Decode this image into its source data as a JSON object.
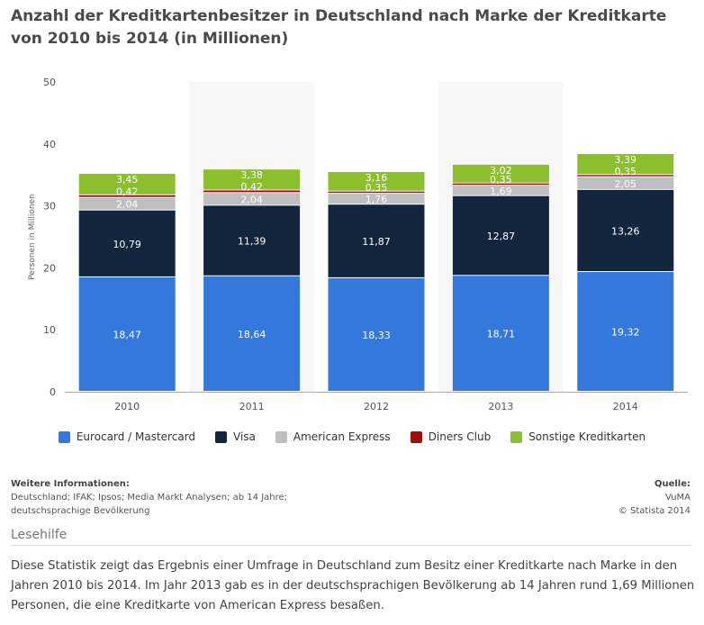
{
  "title": "Anzahl der Kreditkartenbesitzer in Deutschland nach Marke der Kreditkarte von 2010 bis 2014 (in Millionen)",
  "chart_data": {
    "type": "bar",
    "stacked": true,
    "ylabel": "Personen in Millionen",
    "xlabel": "",
    "ylim": [
      0,
      50
    ],
    "yticks": [
      0,
      10,
      20,
      30,
      40,
      50
    ],
    "categories": [
      "2010",
      "2011",
      "2012",
      "2013",
      "2014"
    ],
    "series": [
      {
        "name": "Eurocard / Mastercard",
        "color": "#3478db",
        "values": [
          18.47,
          18.64,
          18.33,
          18.71,
          19.32
        ],
        "labels": [
          "18,47",
          "18,64",
          "18,33",
          "18,71",
          "19,32"
        ]
      },
      {
        "name": "Visa",
        "color": "#13253d",
        "values": [
          10.79,
          11.39,
          11.87,
          12.87,
          13.26
        ],
        "labels": [
          "10,79",
          "11,39",
          "11,87",
          "12,87",
          "13,26"
        ]
      },
      {
        "name": "American Express",
        "color": "#bfbfbf",
        "values": [
          2.04,
          2.04,
          1.76,
          1.69,
          2.05
        ],
        "labels": [
          "2,04",
          "2,04",
          "1,76",
          "1,69",
          "2,05"
        ]
      },
      {
        "name": "Diners Club",
        "color": "#a40b0b",
        "values": [
          0.42,
          0.42,
          0.35,
          0.35,
          0.35
        ],
        "labels": [
          "0,42",
          "0,42",
          "0,35",
          "0,35",
          "0,35"
        ]
      },
      {
        "name": "Sonstige Kreditkarten",
        "color": "#8cbf2e",
        "values": [
          3.45,
          3.38,
          3.16,
          3.02,
          3.39
        ],
        "labels": [
          "3,45",
          "3,38",
          "3,16",
          "3,02",
          "3,39"
        ]
      }
    ],
    "legend_position": "bottom",
    "grid": false
  },
  "info": {
    "heading": "Weitere Informationen:",
    "line1": "Deutschland; IFAK; Ipsos; Media Markt Analysen; ab 14 Jahre;",
    "line2": "deutschsprachige Bevölkerung"
  },
  "source": {
    "heading": "Quelle:",
    "name": "VuMA",
    "copyright": "© Statista 2014"
  },
  "reading_aid": "Lesehilfe",
  "description": "Diese Statistik zeigt das Ergebnis einer Umfrage in Deutschland zum Besitz einer Kreditkarte nach Marke in den Jahren 2010 bis 2014. Im Jahr 2013 gab es in der deutschsprachigen Bevölkerung ab 14 Jahren rund 1,69 Millionen Personen, die eine Kreditkarte von American Express besaßen."
}
